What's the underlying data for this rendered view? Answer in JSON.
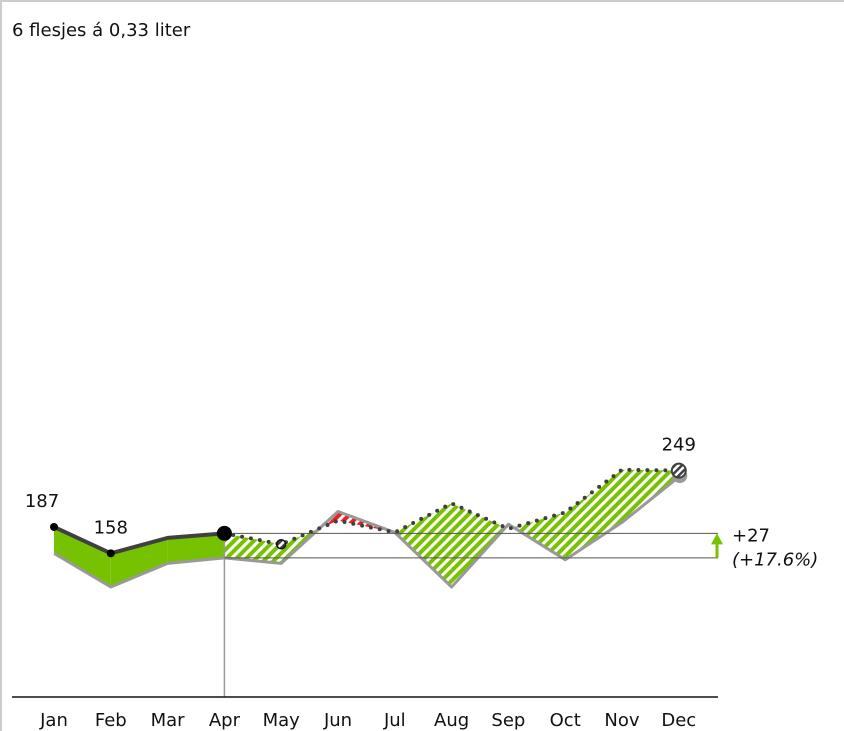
{
  "chart_data": {
    "type": "line",
    "title": "6 flesjes á 0,33 liter",
    "categories": [
      "Jan",
      "Feb",
      "Mar",
      "Apr",
      "May",
      "Jun",
      "Jul",
      "Aug",
      "Sep",
      "Oct",
      "Nov",
      "Dec"
    ],
    "series": [
      {
        "color": "#404040",
        "values": [
          187,
          158,
          175,
          180,
          null,
          null,
          null,
          null,
          null,
          null,
          null,
          null
        ],
        "labels": [
          0,
          1
        ]
      },
      {
        "color": "#404040",
        "style": "dotted",
        "values": [
          null,
          null,
          null,
          180,
          168,
          194,
          181,
          213,
          185,
          203,
          250,
          249
        ],
        "labels": [
          11
        ]
      },
      {
        "color": "#999999",
        "values": [
          158,
          121,
          147,
          153,
          147,
          204,
          181,
          121,
          190,
          151,
          192,
          242
        ]
      }
    ],
    "fill_colors": {
      "above": "#77c200",
      "below": "#e8201e"
    },
    "delta": {
      "label": "+27",
      "percent_label": "(+17.6%)",
      "color": "#77c200"
    },
    "ylim": [
      0,
      760
    ]
  }
}
